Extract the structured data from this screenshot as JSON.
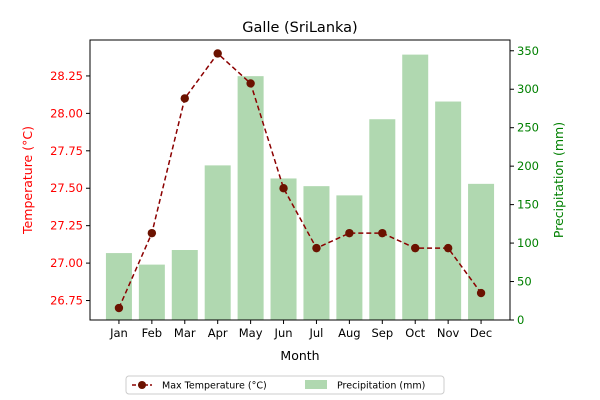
{
  "chart_data": {
    "type": "bar+line",
    "title": "Galle (SriLanka)",
    "xlabel": "Month",
    "categories": [
      "Jan",
      "Feb",
      "Mar",
      "Apr",
      "May",
      "Jun",
      "Jul",
      "Aug",
      "Sep",
      "Oct",
      "Nov",
      "Dec"
    ],
    "left_axis": {
      "label": "Temperature (°C)",
      "color": "#ff0000",
      "ylim": [
        26.62,
        28.49
      ],
      "ticks": [
        "26.75",
        "27.00",
        "27.25",
        "27.50",
        "27.75",
        "28.00",
        "28.25"
      ],
      "tick_values": [
        26.75,
        27.0,
        27.25,
        27.5,
        27.75,
        28.0,
        28.25
      ]
    },
    "right_axis": {
      "label": "Precipitation (mm)",
      "color": "#008000",
      "ylim": [
        0,
        364
      ],
      "ticks": [
        "0",
        "50",
        "100",
        "150",
        "200",
        "250",
        "300",
        "350"
      ],
      "tick_values": [
        0,
        50,
        100,
        150,
        200,
        250,
        300,
        350
      ]
    },
    "series": [
      {
        "name": "Max Temperature (°C)",
        "type": "line",
        "axis": "left",
        "color": "#8b0000",
        "marker_color": "#6b1200",
        "style": "dashed",
        "values": [
          26.7,
          27.2,
          28.1,
          28.4,
          28.2,
          27.5,
          27.1,
          27.2,
          27.2,
          27.1,
          27.1,
          26.8
        ]
      },
      {
        "name": "Precipitation (mm)",
        "type": "bar",
        "axis": "right",
        "color": "#b0d8b0",
        "values": [
          87,
          72,
          91,
          201,
          317,
          184,
          174,
          162,
          261,
          345,
          284,
          177
        ]
      }
    ],
    "legend": {
      "placement": "bottom-center",
      "entries": [
        "Max Temperature (°C)",
        "Precipitation (mm)"
      ]
    },
    "grid": false
  }
}
